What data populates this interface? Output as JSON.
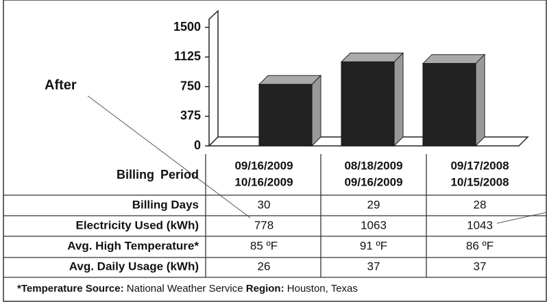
{
  "chart_data": {
    "type": "bar",
    "values": [
      778,
      1063,
      1043
    ],
    "ylim": [
      0,
      1500
    ],
    "yticks": [
      0,
      375,
      750,
      1125,
      1500
    ],
    "color": "#222222"
  },
  "annotation": "After",
  "table": {
    "header": {
      "label": "Billing Period",
      "periods": [
        [
          "09/16/2009",
          "10/16/2009"
        ],
        [
          "08/18/2009",
          "09/16/2009"
        ],
        [
          "09/17/2008",
          "10/15/2008"
        ]
      ]
    },
    "rows": [
      [
        "Billing Days",
        "30",
        "29",
        "28"
      ],
      [
        "Electricity Used (kWh)",
        "778",
        "1063",
        "1043"
      ],
      [
        "Avg. High Temperature*",
        "85 ºF",
        "91 ºF",
        "86 ºF"
      ],
      [
        "Avg. Daily Usage (kWh)",
        "26",
        "37",
        "37"
      ]
    ]
  },
  "footer": {
    "source_label": "*Temperature Source:",
    "source": "National Weather Service",
    "region_label": "Region:",
    "region": "Houston, Texas"
  }
}
